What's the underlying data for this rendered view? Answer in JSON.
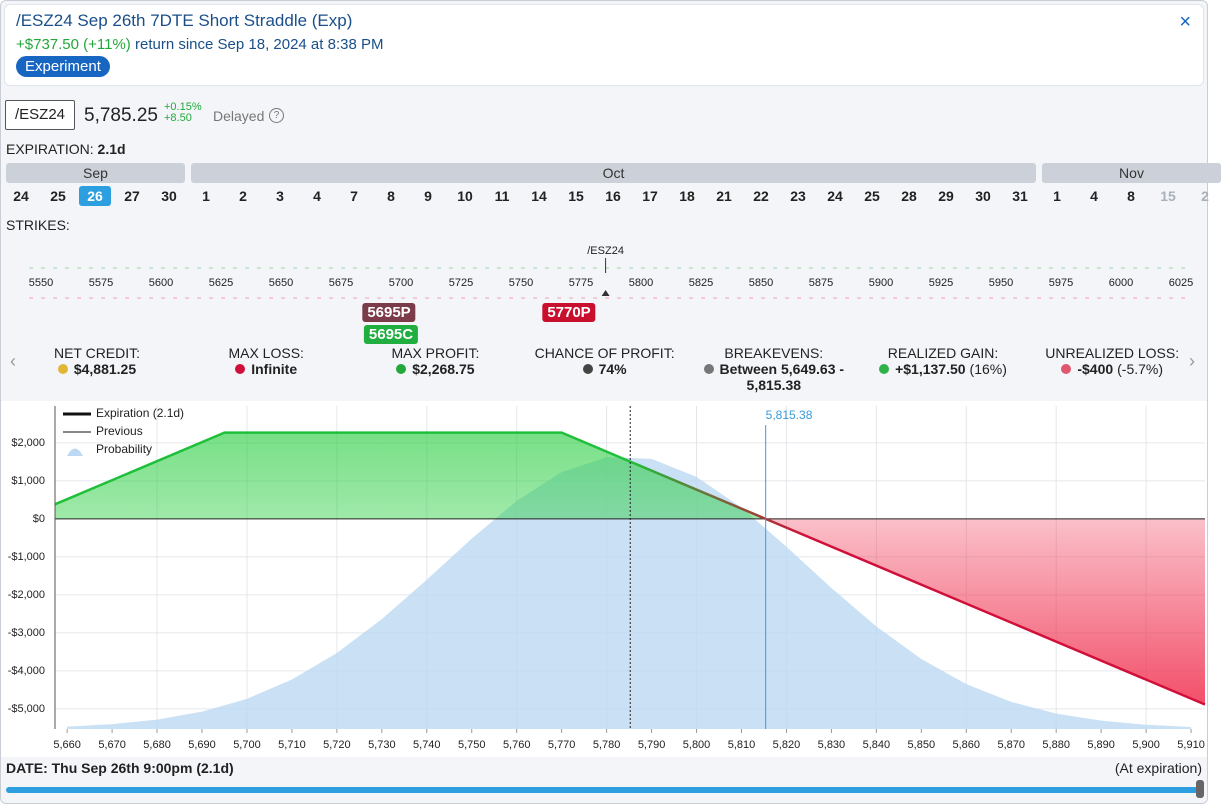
{
  "header": {
    "title": "/ESZ24 Sep 26th 7DTE Short Straddle (Exp)",
    "gain": "+$737.50 (+11%)",
    "since": "return since Sep 18, 2024 at 8:38 PM",
    "badge": "Experiment",
    "close": "×"
  },
  "quote": {
    "symbol": "/ESZ24",
    "price": "5,785.25",
    "change_pct": "+0.15%",
    "change": "+8.50",
    "status": "Delayed",
    "help": "?"
  },
  "expiration": {
    "label": "EXPIRATION:",
    "value": "2.1d",
    "months": [
      {
        "name": "Sep",
        "days": [
          {
            "label": "24"
          },
          {
            "label": "25"
          },
          {
            "label": "26",
            "selected": true
          },
          {
            "label": "27"
          },
          {
            "label": "30"
          }
        ]
      },
      {
        "name": "Oct",
        "days": [
          {
            "label": "1"
          },
          {
            "label": "2"
          },
          {
            "label": "3"
          },
          {
            "label": "4"
          },
          {
            "label": "7"
          },
          {
            "label": "8"
          },
          {
            "label": "9"
          },
          {
            "label": "10"
          },
          {
            "label": "11"
          },
          {
            "label": "14"
          },
          {
            "label": "15"
          },
          {
            "label": "16"
          },
          {
            "label": "17"
          },
          {
            "label": "18"
          },
          {
            "label": "21"
          },
          {
            "label": "22"
          },
          {
            "label": "23"
          },
          {
            "label": "24"
          },
          {
            "label": "25"
          },
          {
            "label": "28"
          },
          {
            "label": "29"
          },
          {
            "label": "30"
          },
          {
            "label": "31"
          }
        ]
      },
      {
        "name": "Nov",
        "days": [
          {
            "label": "1"
          },
          {
            "label": "4"
          },
          {
            "label": "8"
          },
          {
            "label": "15",
            "disabled": true
          },
          {
            "label": "2",
            "disabled": true
          }
        ]
      }
    ]
  },
  "strikes": {
    "label": "STRIKES:",
    "underlying": "/ESZ24",
    "ticks": [
      5550,
      5575,
      5600,
      5625,
      5650,
      5675,
      5700,
      5725,
      5750,
      5775,
      5800,
      5825,
      5850,
      5875,
      5900,
      5925,
      5950,
      5975,
      6000,
      6025
    ],
    "legs": [
      {
        "label": "5695P",
        "strike": 5695,
        "color": "#7b3b4b"
      },
      {
        "label": "5695C",
        "strike": 5695,
        "color": "#1fae3f"
      },
      {
        "label": "5770P",
        "strike": 5770,
        "color": "#c8102e"
      }
    ]
  },
  "stats": [
    {
      "label": "NET CREDIT:",
      "value": "$4,881.25",
      "icon": "#e2b634"
    },
    {
      "label": "MAX LOSS:",
      "value": "Infinite",
      "icon": "#d0103a"
    },
    {
      "label": "MAX PROFIT:",
      "value": "$2,268.75",
      "icon": "#22a83a"
    },
    {
      "label": "CHANCE OF PROFIT:",
      "value": "74%",
      "icon": "#444444"
    },
    {
      "label": "BREAKEVENS:",
      "value": "Between 5,649.63 - 5,815.38",
      "icon": "#777777"
    },
    {
      "label": "REALIZED GAIN:",
      "value": "+$1,137.50",
      "note": "(16%)",
      "icon": "#2fb24a"
    },
    {
      "label": "UNREALIZED LOSS:",
      "value": "-$400",
      "note": "(-5.7%)",
      "icon": "#e0566e"
    }
  ],
  "chart_data": {
    "type": "line",
    "xlim": [
      5657.3,
      5913.1
    ],
    "ylim": [
      -5530,
      2970
    ],
    "grid": true,
    "xticks": [
      {
        "value": 5660,
        "label": "5,660"
      },
      {
        "value": 5670,
        "label": "5,670"
      },
      {
        "value": 5680,
        "label": "5,680"
      },
      {
        "value": 5690,
        "label": "5,690"
      },
      {
        "value": 5700,
        "label": "5,700"
      },
      {
        "value": 5710,
        "label": "5,710"
      },
      {
        "value": 5720,
        "label": "5,720"
      },
      {
        "value": 5730,
        "label": "5,730"
      },
      {
        "value": 5740,
        "label": "5,740"
      },
      {
        "value": 5750,
        "label": "5,750"
      },
      {
        "value": 5760,
        "label": "5,760"
      },
      {
        "value": 5770,
        "label": "5,770"
      },
      {
        "value": 5780,
        "label": "5,780"
      },
      {
        "value": 5790,
        "label": "5,790"
      },
      {
        "value": 5800,
        "label": "5,800"
      },
      {
        "value": 5810,
        "label": "5,810"
      },
      {
        "value": 5820,
        "label": "5,820"
      },
      {
        "value": 5830,
        "label": "5,830"
      },
      {
        "value": 5840,
        "label": "5,840"
      },
      {
        "value": 5850,
        "label": "5,850"
      },
      {
        "value": 5860,
        "label": "5,860"
      },
      {
        "value": 5870,
        "label": "5,870"
      },
      {
        "value": 5880,
        "label": "5,880"
      },
      {
        "value": 5890,
        "label": "5,890"
      },
      {
        "value": 5900,
        "label": "5,900"
      },
      {
        "value": 5910,
        "label": "5,910"
      }
    ],
    "yticks": [
      {
        "value": 2000,
        "label": "$2,000"
      },
      {
        "value": 1000,
        "label": "$1,000"
      },
      {
        "value": 0,
        "label": "$0"
      },
      {
        "value": -1000,
        "label": "-$1,000"
      },
      {
        "value": -2000,
        "label": "-$2,000"
      },
      {
        "value": -3000,
        "label": "-$3,000"
      },
      {
        "value": -4000,
        "label": "-$4,000"
      },
      {
        "value": -5000,
        "label": "-$5,000"
      }
    ],
    "current_price": 5785.25,
    "breakeven": 5815.38,
    "breakeven_label": "5,815.38",
    "previous_label": "Previous",
    "series": [
      {
        "name": "Expiration (2.1d)",
        "color": "#1fbf3a",
        "loss_color": "#d0103a",
        "x": [
          5657.3,
          5695,
          5770,
          5815.38,
          5913.1
        ],
        "values": [
          383,
          2268.75,
          2268.75,
          0,
          -4886
        ]
      },
      {
        "name": "Probability",
        "color": "#bcd8f2",
        "x": [
          5660,
          5670,
          5680,
          5690,
          5700,
          5710,
          5720,
          5730,
          5740,
          5750,
          5760,
          5770,
          5780,
          5790,
          5800,
          5810,
          5820,
          5830,
          5840,
          5850,
          5860,
          5870,
          5880,
          5890,
          5900,
          5910
        ],
        "values": [
          -5467,
          -5402,
          -5282,
          -5072,
          -4736,
          -4226,
          -3529,
          -2638,
          -1604,
          -519,
          472,
          1234,
          1622,
          1579,
          1105,
          293,
          -734,
          -1819,
          -2832,
          -3687,
          -4348,
          -4815,
          -5124,
          -5310,
          -5419,
          -5476
        ]
      }
    ]
  },
  "footer": {
    "label": "DATE:",
    "value": "Thu Sep 26th 9:00pm (2.1d)",
    "note": "(At expiration)"
  }
}
